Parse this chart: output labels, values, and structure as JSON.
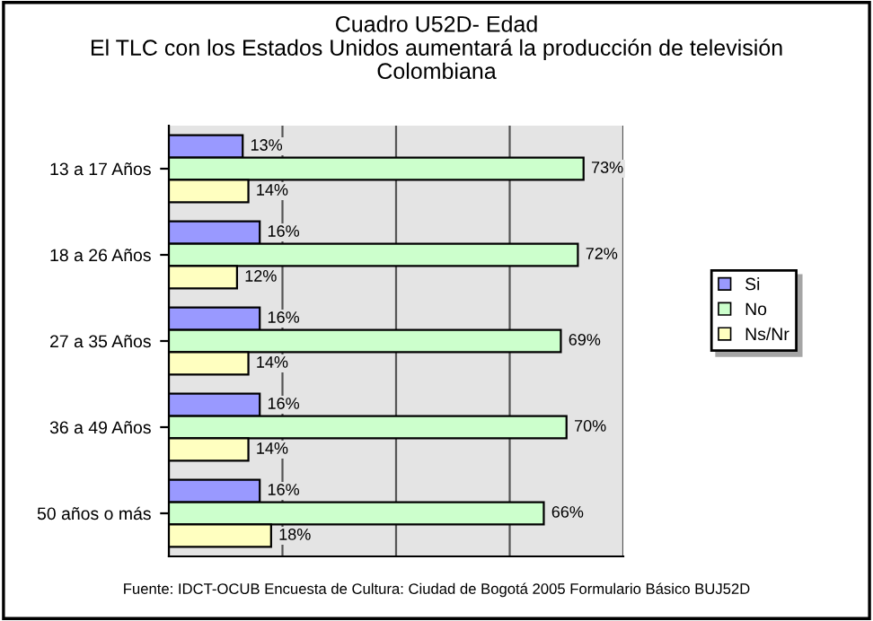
{
  "chart_data": {
    "type": "bar",
    "orientation": "horizontal",
    "title": "Cuadro U52D- Edad\nEl TLC con los Estados Unidos aumentará la producción de televisión\nColombiana",
    "categories": [
      "13 a 17 Años",
      "18 a 26 Años",
      "27 a 35 Años",
      "36 a 49 Años",
      "50 años o más"
    ],
    "series": [
      {
        "name": "Si",
        "color": "#9999ff",
        "values": [
          13,
          16,
          16,
          16,
          16
        ],
        "value_labels": [
          "13%",
          "16%",
          "16%",
          "16%",
          "16%"
        ]
      },
      {
        "name": "No",
        "color": "#ccffcc",
        "values": [
          73,
          72,
          69,
          70,
          66
        ],
        "value_labels": [
          "73%",
          "72%",
          "69%",
          "70%",
          "66%"
        ]
      },
      {
        "name": "Ns/Nr",
        "color": "#ffffc0",
        "values": [
          14,
          12,
          14,
          14,
          18
        ],
        "value_labels": [
          "14%",
          "12%",
          "14%",
          "14%",
          "18%"
        ]
      }
    ],
    "xlim": [
      0,
      80
    ],
    "xticks": [
      {
        "value": 0,
        "label": null
      },
      {
        "value": 20,
        "label": null
      },
      {
        "value": 40,
        "label": null
      },
      {
        "value": 60,
        "label": null
      },
      {
        "value": 80,
        "label": null
      }
    ],
    "tick_labels": "y",
    "grid": "x",
    "legend": "right",
    "annotations": [
      "Fuente: IDCT-OCUB Encuesta de Cultura: Ciudad de Bogotá 2005 Formulario Básico BUJ52D"
    ]
  }
}
